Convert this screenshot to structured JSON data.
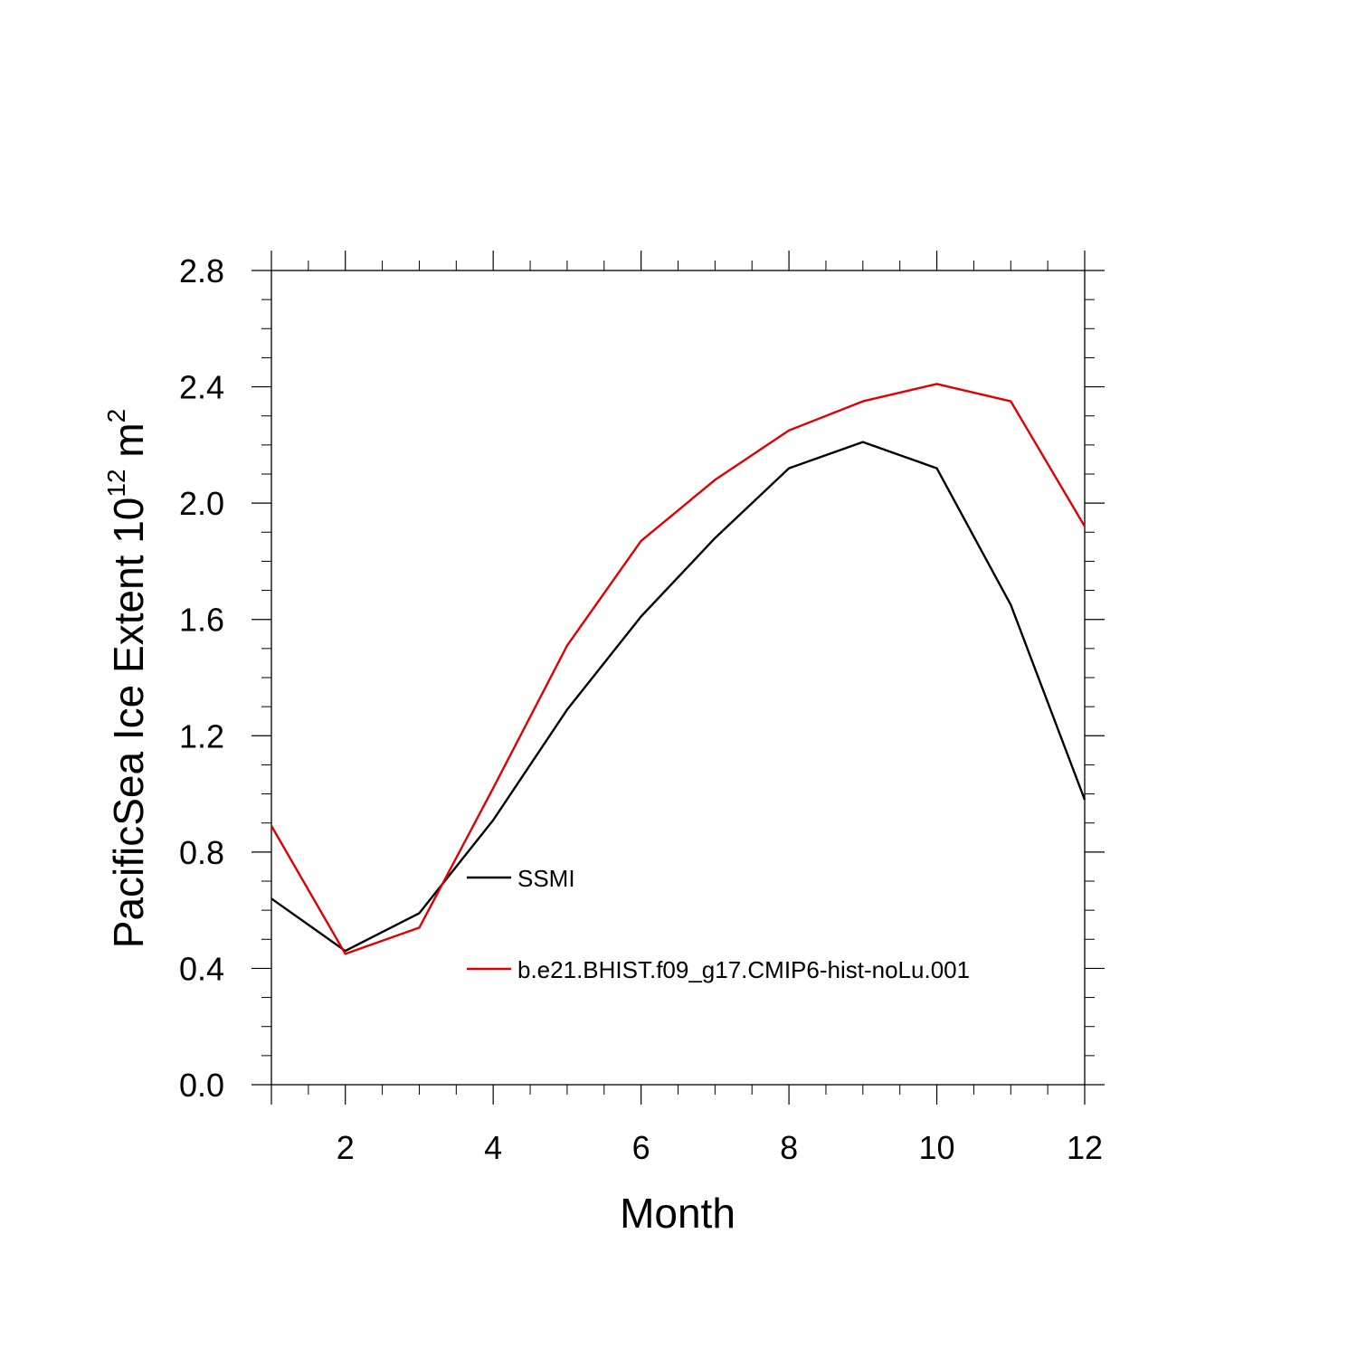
{
  "chart_data": {
    "type": "line",
    "title": "",
    "xlabel": "Month",
    "ylabel": {
      "prefix": "PacificSea Ice Extent 10",
      "exp1": "12",
      "mid": " m",
      "exp2": "2"
    },
    "xlim": [
      1,
      12
    ],
    "ylim": [
      0.0,
      2.8
    ],
    "x_ticks": [
      2,
      4,
      6,
      8,
      10,
      12
    ],
    "y_ticks": [
      "0.0",
      "0.4",
      "0.8",
      "1.2",
      "1.6",
      "2.0",
      "2.4",
      "2.8"
    ],
    "grid": false,
    "legend_position": "inside-lower-center",
    "x": [
      1,
      2,
      3,
      4,
      5,
      6,
      7,
      8,
      9,
      10,
      11,
      12
    ],
    "series": [
      {
        "name": "SSMI",
        "color": "#000000",
        "values": [
          0.64,
          0.46,
          0.59,
          0.91,
          1.29,
          1.61,
          1.88,
          2.12,
          2.21,
          2.12,
          1.65,
          0.98
        ]
      },
      {
        "name": "b.e21.BHIST.f09_g17.CMIP6-hist-noLu.001",
        "color": "#e00000",
        "values": [
          0.89,
          0.45,
          0.54,
          1.02,
          1.51,
          1.87,
          2.08,
          2.25,
          2.35,
          2.41,
          2.35,
          1.92
        ]
      }
    ]
  }
}
